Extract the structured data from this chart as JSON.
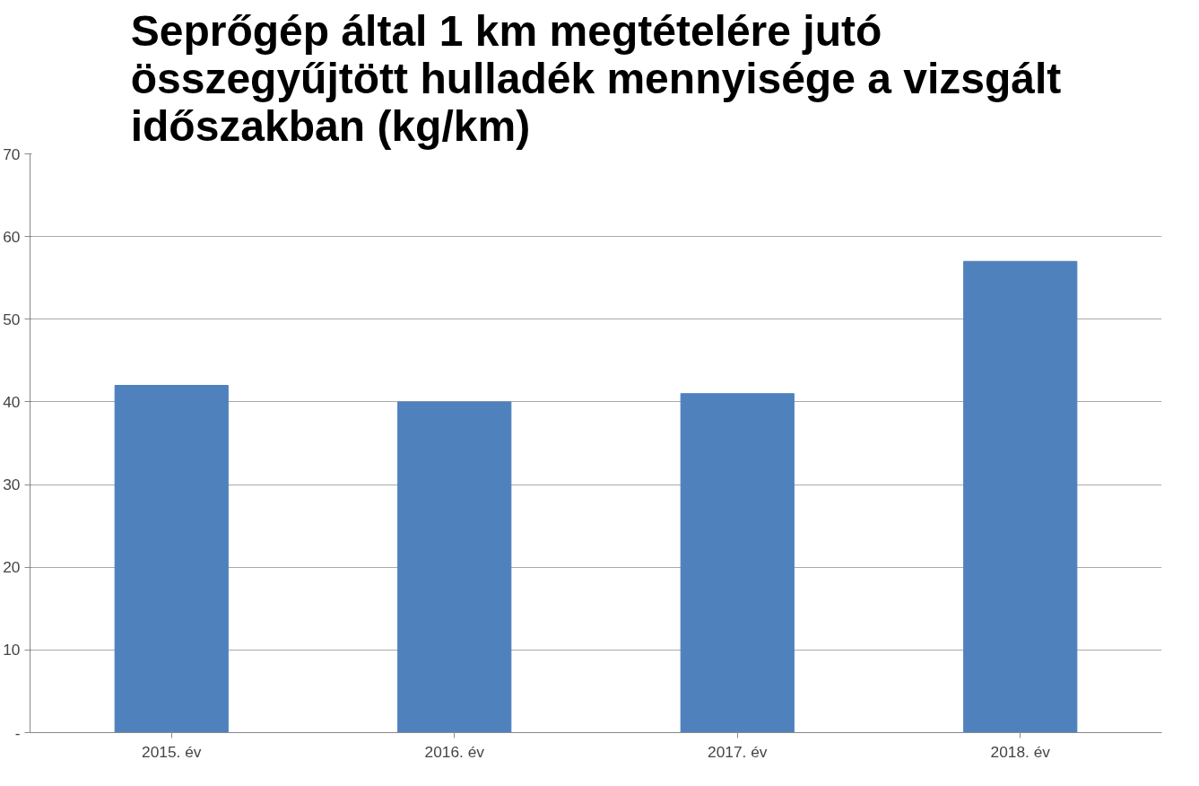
{
  "chart_data": {
    "type": "bar",
    "title": "Seprőgép által 1 km megtételére jutó\nösszegyűjtött hulladék mennyisége a vizsgált\nidőszakban (kg/km)",
    "categories": [
      "2015. év",
      "2016. év",
      "2017. év",
      "2018. év"
    ],
    "values": [
      42,
      40,
      41,
      57
    ],
    "color": "#4f81bd",
    "ylim": [
      0,
      70
    ],
    "yticks": [
      {
        "value": 0,
        "label": "-"
      },
      10,
      20,
      30,
      40,
      50,
      60,
      70
    ],
    "grid": "y"
  }
}
